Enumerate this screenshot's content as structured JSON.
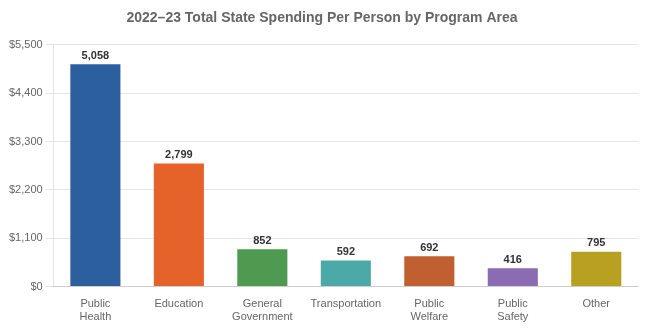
{
  "chart_data": {
    "type": "bar",
    "title": "2022–23 Total State Spending Per Person by Program Area",
    "categories": [
      "Public\nHealth",
      "Education",
      "General\nGovernment",
      "Transportation",
      "Public\nWelfare",
      "Public\nSafety",
      "Other"
    ],
    "values": [
      5058,
      2799,
      852,
      592,
      692,
      416,
      795
    ],
    "value_labels": [
      "5,058",
      "2,799",
      "852",
      "592",
      "692",
      "416",
      "795"
    ],
    "colors": [
      "#2B5F9E",
      "#E5622A",
      "#4E9A51",
      "#4BAAA8",
      "#C06030",
      "#8B6BB1",
      "#B8A020"
    ],
    "ylim": [
      0,
      5500
    ],
    "yticks": [
      {
        "value": 0,
        "label": "$0"
      },
      {
        "value": 1100,
        "label": "$1,100"
      },
      {
        "value": 2200,
        "label": "$2,200"
      },
      {
        "value": 3300,
        "label": "$3,300"
      },
      {
        "value": 4400,
        "label": "$4,400"
      },
      {
        "value": 5500,
        "label": "$5,500"
      }
    ],
    "grid": true,
    "data_labels": true
  }
}
